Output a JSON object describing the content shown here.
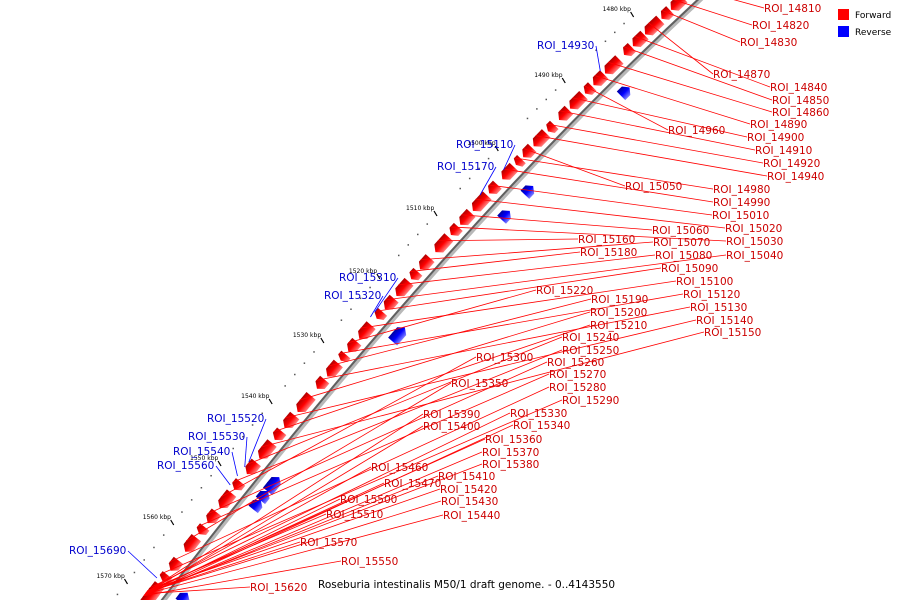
{
  "legend": {
    "forward_label": "Forward",
    "reverse_label": "Reverse",
    "forward_color": "#ff0000",
    "reverse_color": "#0000ff"
  },
  "caption": "Roseburia intestinalis M50/1 draft genome. - 0..4143550",
  "ticks": [
    "1480 kbp",
    "1490 kbp",
    "1500 kbp",
    "1510 kbp",
    "1520 kbp",
    "1530 kbp",
    "1540 kbp",
    "1550 kbp",
    "1560 kbp",
    "1570 kbp"
  ],
  "labels_forward": [
    "ROI_14810",
    "ROI_14820",
    "ROI_14830",
    "ROI_14870",
    "ROI_14840",
    "ROI_14850",
    "ROI_14860",
    "ROI_14890",
    "ROI_14960",
    "ROI_14900",
    "ROI_14910",
    "ROI_14920",
    "ROI_14940",
    "ROI_15050",
    "ROI_14980",
    "ROI_14990",
    "ROI_15010",
    "ROI_15020",
    "ROI_15060",
    "ROI_15030",
    "ROI_15160",
    "ROI_15070",
    "ROI_15180",
    "ROI_15080",
    "ROI_15040",
    "ROI_15090",
    "ROI_15100",
    "ROI_15220",
    "ROI_15120",
    "ROI_15190",
    "ROI_15130",
    "ROI_15200",
    "ROI_15140",
    "ROI_15210",
    "ROI_15150",
    "ROI_15240",
    "ROI_15250",
    "ROI_15300",
    "ROI_15260",
    "ROI_15270",
    "ROI_15350",
    "ROI_15280",
    "ROI_15290",
    "ROI_15330",
    "ROI_15390",
    "ROI_15340",
    "ROI_15400",
    "ROI_15360",
    "ROI_15370",
    "ROI_15380",
    "ROI_15460",
    "ROI_15410",
    "ROI_15470",
    "ROI_15420",
    "ROI_15500",
    "ROI_15430",
    "ROI_15510",
    "ROI_15440",
    "ROI_15570",
    "ROI_15550",
    "ROI_15620"
  ],
  "labels_reverse": [
    "ROI_14930",
    "ROI_15110",
    "ROI_15170",
    "ROI_15310",
    "ROI_15320",
    "ROI_15520",
    "ROI_15530",
    "ROI_15540",
    "ROI_15560",
    "ROI_15690"
  ]
}
